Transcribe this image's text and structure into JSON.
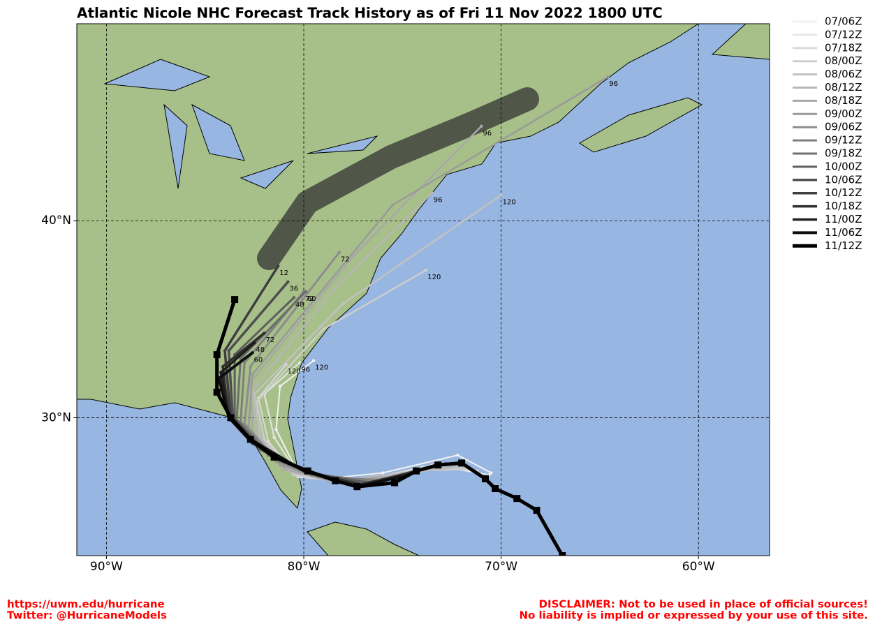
{
  "map": {
    "title": "Atlantic Nicole NHC Forecast Track History as of Fri 11 Nov 2022 1800 UTC",
    "xlim": [
      -91.5,
      -56.4
    ],
    "ylim": [
      23.0,
      50.0
    ],
    "xticks": [
      {
        "value": -90,
        "label": "90°W"
      },
      {
        "value": -80,
        "label": "80°W"
      },
      {
        "value": -70,
        "label": "70°W"
      },
      {
        "value": -60,
        "label": "60°W"
      }
    ],
    "yticks": [
      {
        "value": 30,
        "label": "30°N"
      },
      {
        "value": 40,
        "label": "40°N"
      }
    ],
    "tracks": [
      {
        "name": "07/06Z",
        "color": "#f2f2f2",
        "width": 2,
        "lon": [
          -70.5,
          -72.2,
          -76,
          -79,
          -80.4,
          -81.4,
          -81.2,
          -79.5
        ],
        "lat": [
          27.2,
          28.1,
          27.2,
          26.9,
          27.4,
          29.4,
          31.6,
          32.9
        ],
        "end_label": 120
      },
      {
        "name": "07/12Z",
        "color": "#e6e6e6",
        "width": 2,
        "lon": [
          -70.6,
          -73.5,
          -77,
          -80.2,
          -81.5,
          -82,
          -80.2
        ],
        "lat": [
          27.1,
          27.6,
          26.8,
          27.0,
          29.0,
          31.2,
          32.8
        ],
        "end_label": 96
      },
      {
        "name": "07/18Z",
        "color": "#dadada",
        "width": 2,
        "lon": [
          -71.2,
          -74,
          -77.5,
          -80.3,
          -81.8,
          -82.3,
          -80.9
        ],
        "lat": [
          27.3,
          27.5,
          26.7,
          27.0,
          28.8,
          31.0,
          32.7
        ],
        "end_label": 120
      },
      {
        "name": "08/00Z",
        "color": "#cecece",
        "width": 2.5,
        "lon": [
          -71.5,
          -74.5,
          -78,
          -80.5,
          -82,
          -82.4,
          -79,
          -73.8
        ],
        "lat": [
          27.4,
          27.3,
          26.7,
          27.1,
          28.9,
          30.8,
          34.5,
          37.5
        ],
        "end_label": 120
      },
      {
        "name": "08/06Z",
        "color": "#c2c2c2",
        "width": 2.5,
        "lon": [
          -71.8,
          -75,
          -78.3,
          -80.6,
          -82.2,
          -82.5,
          -78,
          -70
        ],
        "lat": [
          27.5,
          27.2,
          26.8,
          27.2,
          29.0,
          31.2,
          35.8,
          41.3
        ],
        "end_label": 120
      },
      {
        "name": "08/12Z",
        "color": "#b6b6b6",
        "width": 2.5,
        "lon": [
          -72,
          -75.3,
          -78.5,
          -80.8,
          -82.4,
          -82.6,
          -78.5,
          -73.5
        ],
        "lat": [
          27.6,
          27.1,
          26.8,
          27.3,
          29.2,
          31.4,
          36.5,
          41.4
        ],
        "end_label": 96
      },
      {
        "name": "08/18Z",
        "color": "#a8a8a8",
        "width": 2.5,
        "lon": [
          -72.3,
          -75.5,
          -78.7,
          -81,
          -82.6,
          -82.7,
          -77.5,
          -71
        ],
        "lat": [
          27.7,
          27.0,
          26.8,
          27.4,
          29.3,
          31.8,
          38.2,
          44.8
        ],
        "end_label": 96
      },
      {
        "name": "09/00Z",
        "color": "#9a9a9a",
        "width": 2.5,
        "lon": [
          -72.5,
          -75.8,
          -79,
          -81.2,
          -82.8,
          -82.6,
          -75.5,
          -64.6
        ],
        "lat": [
          27.7,
          26.9,
          26.9,
          27.6,
          29.5,
          32.2,
          40.8,
          47.3
        ],
        "end_label": 96
      },
      {
        "name": "09/06Z",
        "color": "#8c8c8c",
        "width": 3,
        "lon": [
          -72.8,
          -76,
          -79.3,
          -81.4,
          -83,
          -82.7,
          -78.2
        ],
        "lat": [
          27.7,
          26.8,
          27.0,
          27.8,
          29.7,
          32.6,
          38.4
        ],
        "end_label": 72
      },
      {
        "name": "09/12Z",
        "color": "#7e7e7e",
        "width": 3,
        "lon": [
          -73,
          -76.3,
          -79.5,
          -81.6,
          -83.2,
          -83,
          -80.0
        ],
        "lat": [
          27.6,
          26.8,
          27.1,
          28.0,
          29.8,
          32.8,
          36.4
        ],
        "end_label": 72
      },
      {
        "name": "09/18Z",
        "color": "#6e6e6e",
        "width": 3,
        "lon": [
          -73.3,
          -76.5,
          -79.6,
          -81.8,
          -83.4,
          -83.2,
          -79.9
        ],
        "lat": [
          27.6,
          26.7,
          27.1,
          28.1,
          29.9,
          33.0,
          36.4
        ],
        "end_label": 60
      },
      {
        "name": "10/00Z",
        "color": "#5e5e5e",
        "width": 3,
        "lon": [
          -73.6,
          -76.7,
          -79.7,
          -82,
          -83.5,
          -83.5,
          -80.5
        ],
        "lat": [
          27.5,
          26.7,
          27.2,
          28.3,
          30.0,
          33.2,
          36.1
        ],
        "end_label": 48
      },
      {
        "name": "10/06Z",
        "color": "#4e4e4e",
        "width": 3.5,
        "lon": [
          -73.9,
          -76.9,
          -79.8,
          -82.2,
          -83.6,
          -83.8,
          -80.8
        ],
        "lat": [
          27.4,
          26.6,
          27.2,
          28.4,
          30.0,
          33.4,
          36.9
        ],
        "end_label": 36
      },
      {
        "name": "10/12Z",
        "color": "#3e3e3e",
        "width": 3.5,
        "lon": [
          -74.2,
          -77.1,
          -79.9,
          -82.4,
          -83.7,
          -84,
          -81.3
        ],
        "lat": [
          27.3,
          26.6,
          27.3,
          28.6,
          30.0,
          33.4,
          37.7
        ],
        "end_label": 12
      },
      {
        "name": "10/18Z",
        "color": "#2e2e2e",
        "width": 3.5,
        "lon": [
          -74.5,
          -77.2,
          -80,
          -82.6,
          -83.8,
          -84.1,
          -82.0
        ],
        "lat": [
          27.2,
          26.6,
          27.3,
          28.7,
          30.0,
          32.6,
          34.3
        ],
        "end_label": 72
      },
      {
        "name": "11/00Z",
        "color": "#1e1e1e",
        "width": 3.5,
        "lon": [
          -74.8,
          -77.3,
          -80,
          -82.7,
          -83.8,
          -84.2,
          -82.5
        ],
        "lat": [
          27.1,
          26.5,
          27.3,
          28.8,
          30.0,
          32.3,
          33.8
        ],
        "end_label": 48
      },
      {
        "name": "11/06Z",
        "color": "#0e0e0e",
        "width": 4,
        "lon": [
          -75.1,
          -77.3,
          -80,
          -82.7,
          -83.8,
          -84.3,
          -82.6
        ],
        "lat": [
          27.0,
          26.5,
          27.3,
          28.9,
          30.0,
          32.0,
          33.3
        ],
        "end_label": 60
      },
      {
        "name": "11/12Z",
        "color": "#000000",
        "width": 5,
        "lon": [
          -66.9,
          -68.2,
          -69.2,
          -70.3,
          -70.8,
          -72.0,
          -73.2,
          -74.3,
          -75.4,
          -77.3,
          -78.4,
          -79.8,
          -81.5,
          -82.7,
          -83.7,
          -84.4,
          -84.4,
          -83.5
        ],
        "lat": [
          23.0,
          25.3,
          25.9,
          26.4,
          26.9,
          27.7,
          27.6,
          27.3,
          26.7,
          26.5,
          26.8,
          27.3,
          28.0,
          28.9,
          30.0,
          31.3,
          33.2,
          36.0
        ]
      }
    ],
    "footer_left": [
      "https://uwm.edu/hurricane",
      "Twitter: @HurricaneModels"
    ],
    "footer_right": [
      "DISCLAIMER: Not to be used in place of official sources!",
      "No liability is implied or expressed by your use of this site."
    ]
  }
}
